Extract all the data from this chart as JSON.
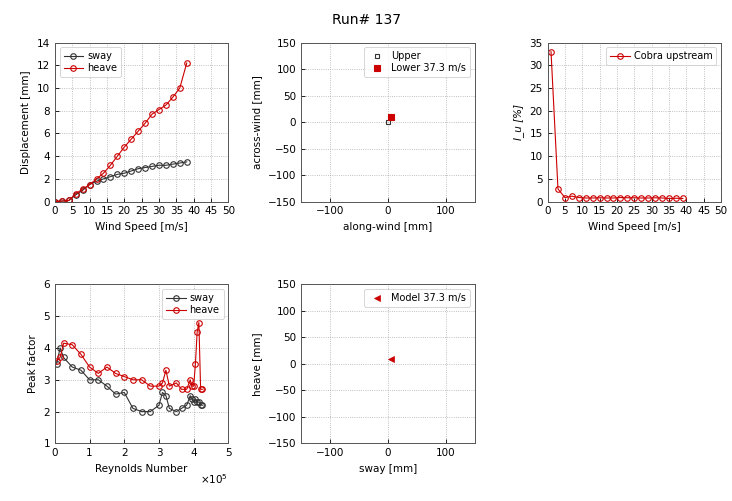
{
  "title": "Run# 137",
  "title_fontsize": 10,
  "disp_wind_speed": [
    0,
    2,
    4,
    6,
    8,
    10,
    12,
    14,
    16,
    18,
    20,
    22,
    24,
    26,
    28,
    30,
    32,
    34,
    36,
    38
  ],
  "disp_sway": [
    0.0,
    0.05,
    0.1,
    0.6,
    1.0,
    1.5,
    1.8,
    2.0,
    2.2,
    2.4,
    2.5,
    2.7,
    2.9,
    3.0,
    3.1,
    3.2,
    3.2,
    3.3,
    3.4,
    3.5
  ],
  "disp_heave": [
    0.0,
    0.05,
    0.1,
    0.7,
    1.1,
    1.5,
    2.0,
    2.5,
    3.2,
    4.0,
    4.8,
    5.5,
    6.2,
    6.9,
    7.7,
    8.1,
    8.5,
    9.2,
    10.0,
    12.2
  ],
  "disp_xlim": [
    0,
    50
  ],
  "disp_ylim": [
    0,
    14
  ],
  "disp_xlabel": "Wind Speed [m/s]",
  "disp_ylabel": "Displacement [mm]",
  "disp_xticks": [
    0,
    5,
    10,
    15,
    20,
    25,
    30,
    35,
    40,
    45,
    50
  ],
  "disp_yticks": [
    0,
    2,
    4,
    6,
    8,
    10,
    12,
    14
  ],
  "motion_upper_x": [
    0.0
  ],
  "motion_upper_y": [
    0.0
  ],
  "motion_lower_x": [
    5.0
  ],
  "motion_lower_y": [
    10.0
  ],
  "motion_xlim": [
    -150,
    150
  ],
  "motion_ylim": [
    -150,
    150
  ],
  "motion_xlabel": "along-wind [mm]",
  "motion_ylabel": "across-wind [mm]",
  "motion_xticks": [
    -100,
    0,
    100
  ],
  "motion_yticks": [
    -150,
    -100,
    -50,
    0,
    50,
    100,
    150
  ],
  "motion_legend_upper": "Upper",
  "motion_legend_lower": "Lower 37.3 m/s",
  "turb_wind_speed": [
    1,
    3,
    5,
    7,
    9,
    11,
    13,
    15,
    17,
    19,
    21,
    23,
    25,
    27,
    29,
    31,
    33,
    35,
    37,
    39
  ],
  "turb_Iu": [
    33.0,
    2.8,
    0.9,
    1.2,
    0.9,
    0.8,
    0.8,
    0.85,
    0.8,
    0.8,
    0.9,
    0.85,
    0.85,
    0.8,
    0.8,
    0.85,
    0.8,
    0.7,
    0.75,
    0.7
  ],
  "turb_xlim": [
    0,
    50
  ],
  "turb_ylim": [
    0,
    35
  ],
  "turb_xlabel": "Wind Speed [m/s]",
  "turb_ylabel": "I_u [%]",
  "turb_xticks": [
    0,
    5,
    10,
    15,
    20,
    25,
    30,
    35,
    40,
    45,
    50
  ],
  "turb_yticks": [
    0,
    5,
    10,
    15,
    20,
    25,
    30,
    35
  ],
  "turb_legend": "Cobra upstream",
  "pf_reynolds": [
    5000,
    15000,
    25000,
    50000,
    75000,
    100000,
    125000,
    150000,
    175000,
    200000,
    225000,
    250000,
    275000,
    300000,
    310000,
    320000,
    330000,
    350000,
    365000,
    380000,
    390000,
    395000,
    400000,
    405000,
    410000,
    415000,
    420000,
    425000
  ],
  "pf_sway": [
    3.5,
    4.0,
    3.7,
    3.4,
    3.3,
    3.0,
    3.0,
    2.8,
    2.55,
    2.6,
    2.1,
    2.0,
    2.0,
    2.2,
    2.6,
    2.5,
    2.1,
    2.0,
    2.1,
    2.2,
    2.5,
    2.4,
    2.3,
    2.4,
    2.3,
    2.3,
    2.2,
    2.2
  ],
  "pf_heave": [
    3.6,
    3.7,
    4.15,
    4.1,
    3.8,
    3.4,
    3.2,
    3.4,
    3.2,
    3.1,
    3.0,
    3.0,
    2.8,
    2.8,
    2.9,
    3.3,
    2.8,
    2.9,
    2.7,
    2.7,
    3.0,
    2.8,
    2.8,
    3.5,
    4.5,
    4.8,
    2.7,
    2.7
  ],
  "pf_xlim": [
    0,
    500000
  ],
  "pf_ylim": [
    1,
    6
  ],
  "pf_xlabel": "Reynolds Number",
  "pf_ylabel": "Peak factor",
  "pf_xticks": [
    0,
    100000,
    200000,
    300000,
    400000,
    500000
  ],
  "pf_yticks": [
    1,
    2,
    3,
    4,
    5,
    6
  ],
  "sway_heave_sway": [
    5.0
  ],
  "sway_heave_heave": [
    10.0
  ],
  "sway_heave_xlim": [
    -150,
    150
  ],
  "sway_heave_ylim": [
    -150,
    150
  ],
  "sway_heave_xlabel": "sway [mm]",
  "sway_heave_ylabel": "heave [mm]",
  "sway_heave_xticks": [
    -100,
    0,
    100
  ],
  "sway_heave_yticks": [
    -150,
    -100,
    -50,
    0,
    50,
    100,
    150
  ],
  "sway_heave_legend": "Model 37.3 m/s",
  "color_black": "#333333",
  "color_red": "#cc0000",
  "grid_color": "#999999",
  "bg_color": "#ffffff",
  "marker_size": 4,
  "line_width": 0.8,
  "font_size": 7.5,
  "legend_fontsize": 7
}
